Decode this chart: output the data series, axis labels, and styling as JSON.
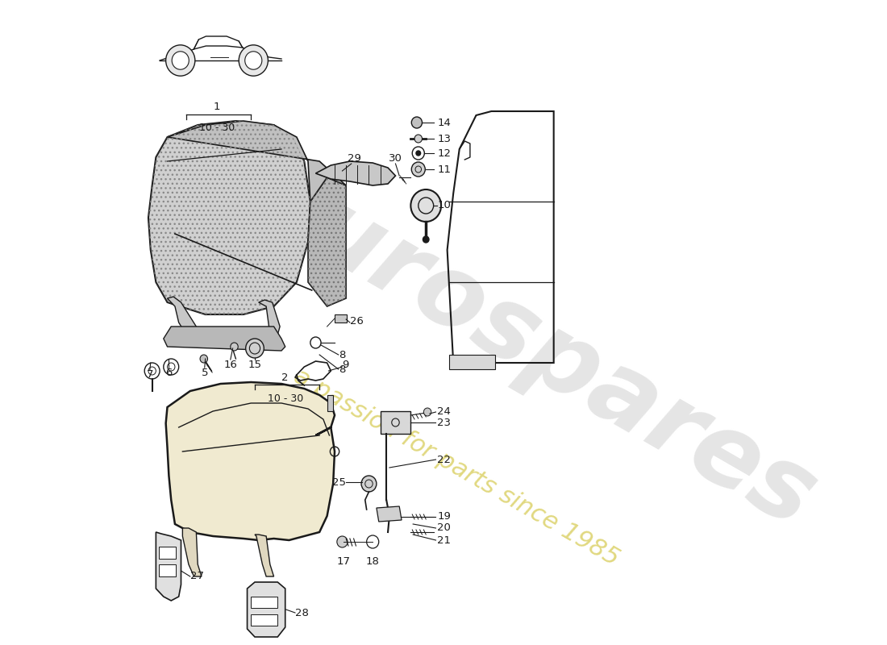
{
  "bg_color": "#ffffff",
  "line_color": "#1a1a1a",
  "hatch_color": "#888888",
  "seat_fill": "#d8d8d8",
  "seat_hatch": "....",
  "watermark1": "eurospares",
  "watermark2": "a passion for parts since 1985",
  "wm1_color": "#cccccc",
  "wm2_color": "#d4c84a",
  "figsize": [
    11.0,
    8.0
  ],
  "dpi": 100
}
